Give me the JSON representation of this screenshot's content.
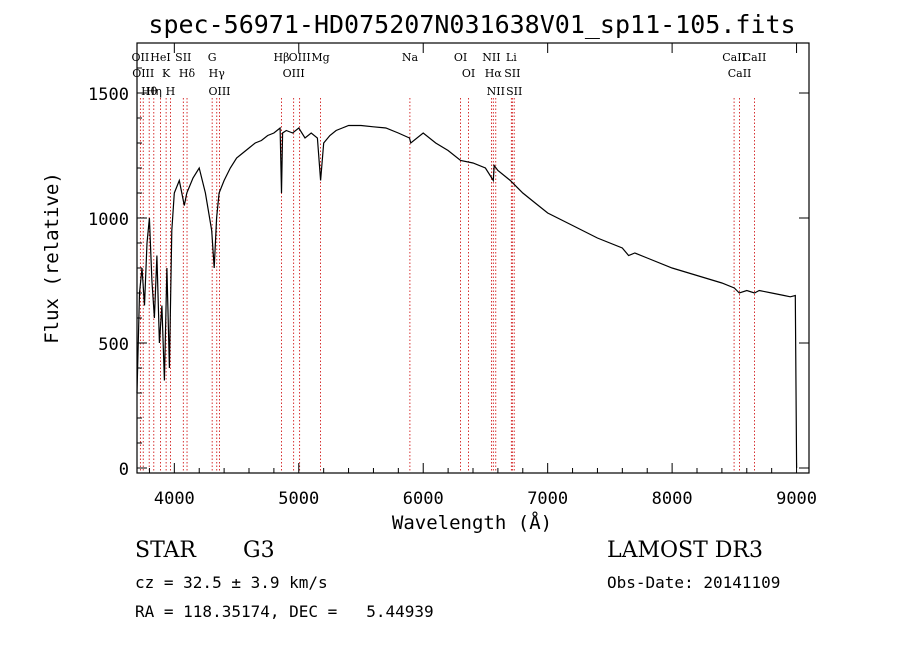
{
  "chart_data": {
    "type": "line",
    "title": "spec-56971-HD075207N031638V01_sp11-105.fits",
    "xlabel": "Wavelength (Å)",
    "ylabel": "Flux (relative)",
    "xlim": [
      3700,
      9100
    ],
    "ylim": [
      -20,
      1700
    ],
    "x_ticks": [
      4000,
      5000,
      6000,
      7000,
      8000,
      9000
    ],
    "x_tick_labels": [
      "4000",
      "5000",
      "6000",
      "7000",
      "8000",
      "9000"
    ],
    "y_ticks": [
      0,
      500,
      1000,
      1500
    ],
    "y_tick_labels": [
      "0",
      "500",
      "1000",
      "1500"
    ],
    "grid": false,
    "series": [
      {
        "name": "flux",
        "x": [
          3700,
          3720,
          3740,
          3760,
          3780,
          3800,
          3820,
          3840,
          3860,
          3880,
          3900,
          3920,
          3940,
          3960,
          3980,
          4000,
          4040,
          4080,
          4100,
          4150,
          4200,
          4250,
          4300,
          4320,
          4340,
          4360,
          4400,
          4450,
          4500,
          4550,
          4600,
          4650,
          4700,
          4750,
          4800,
          4850,
          4861,
          4870,
          4900,
          4950,
          5000,
          5050,
          5100,
          5150,
          5175,
          5200,
          5250,
          5300,
          5350,
          5400,
          5500,
          5600,
          5700,
          5800,
          5890,
          5900,
          6000,
          6100,
          6200,
          6300,
          6400,
          6500,
          6563,
          6570,
          6600,
          6700,
          6800,
          6900,
          7000,
          7200,
          7400,
          7600,
          7650,
          7700,
          7800,
          8000,
          8200,
          8400,
          8500,
          8540,
          8600,
          8662,
          8700,
          8800,
          8900,
          8950,
          8990,
          9000
        ],
        "values": [
          300,
          700,
          800,
          650,
          900,
          1000,
          750,
          600,
          850,
          500,
          650,
          350,
          800,
          400,
          950,
          1100,
          1150,
          1050,
          1100,
          1160,
          1200,
          1100,
          950,
          800,
          1000,
          1100,
          1150,
          1200,
          1240,
          1260,
          1280,
          1300,
          1310,
          1330,
          1340,
          1360,
          1100,
          1340,
          1350,
          1340,
          1360,
          1320,
          1340,
          1320,
          1150,
          1300,
          1330,
          1350,
          1360,
          1370,
          1370,
          1365,
          1360,
          1340,
          1320,
          1300,
          1340,
          1300,
          1270,
          1230,
          1220,
          1200,
          1150,
          1210,
          1190,
          1150,
          1100,
          1060,
          1020,
          970,
          920,
          880,
          850,
          860,
          840,
          800,
          770,
          740,
          720,
          700,
          710,
          700,
          710,
          700,
          690,
          685,
          690,
          0
        ]
      }
    ],
    "line_labels": [
      {
        "wavelength": 3727,
        "label": "OII"
      },
      {
        "wavelength": 3750,
        "label": "OIII"
      },
      {
        "wavelength": 3798,
        "label": "Hθ"
      },
      {
        "wavelength": 3835,
        "label": "Hη"
      },
      {
        "wavelength": 3889,
        "label": "HeI"
      },
      {
        "wavelength": 3934,
        "label": "K"
      },
      {
        "wavelength": 3969,
        "label": "H"
      },
      {
        "wavelength": 4072,
        "label": "SII"
      },
      {
        "wavelength": 4102,
        "label": "Hδ"
      },
      {
        "wavelength": 4304,
        "label": "G"
      },
      {
        "wavelength": 4341,
        "label": "Hγ"
      },
      {
        "wavelength": 4363,
        "label": "OIII"
      },
      {
        "wavelength": 4861,
        "label": "Hβ"
      },
      {
        "wavelength": 4959,
        "label": "OIII"
      },
      {
        "wavelength": 5007,
        "label": "OIII"
      },
      {
        "wavelength": 5175,
        "label": "Mg"
      },
      {
        "wavelength": 5893,
        "label": "Na"
      },
      {
        "wavelength": 6300,
        "label": "OI"
      },
      {
        "wavelength": 6364,
        "label": "OI"
      },
      {
        "wavelength": 6548,
        "label": "NII"
      },
      {
        "wavelength": 6563,
        "label": "Hα"
      },
      {
        "wavelength": 6583,
        "label": "NII"
      },
      {
        "wavelength": 6708,
        "label": "Li"
      },
      {
        "wavelength": 6716,
        "label": "SII"
      },
      {
        "wavelength": 6731,
        "label": "SII"
      },
      {
        "wavelength": 8498,
        "label": "CaII"
      },
      {
        "wavelength": 8542,
        "label": "CaII"
      },
      {
        "wavelength": 8662,
        "label": "CaII"
      }
    ]
  },
  "info": {
    "object_type": "STAR",
    "subclass": "G3",
    "survey": "LAMOST DR3",
    "cz": "cz = 32.5 ± 3.9 km/s",
    "obs_date": "Obs-Date: 20141109",
    "coords": "RA = 118.35174, DEC =   5.44939"
  },
  "colors": {
    "spectrum": "#000000",
    "line_markers": "#cc0000"
  }
}
